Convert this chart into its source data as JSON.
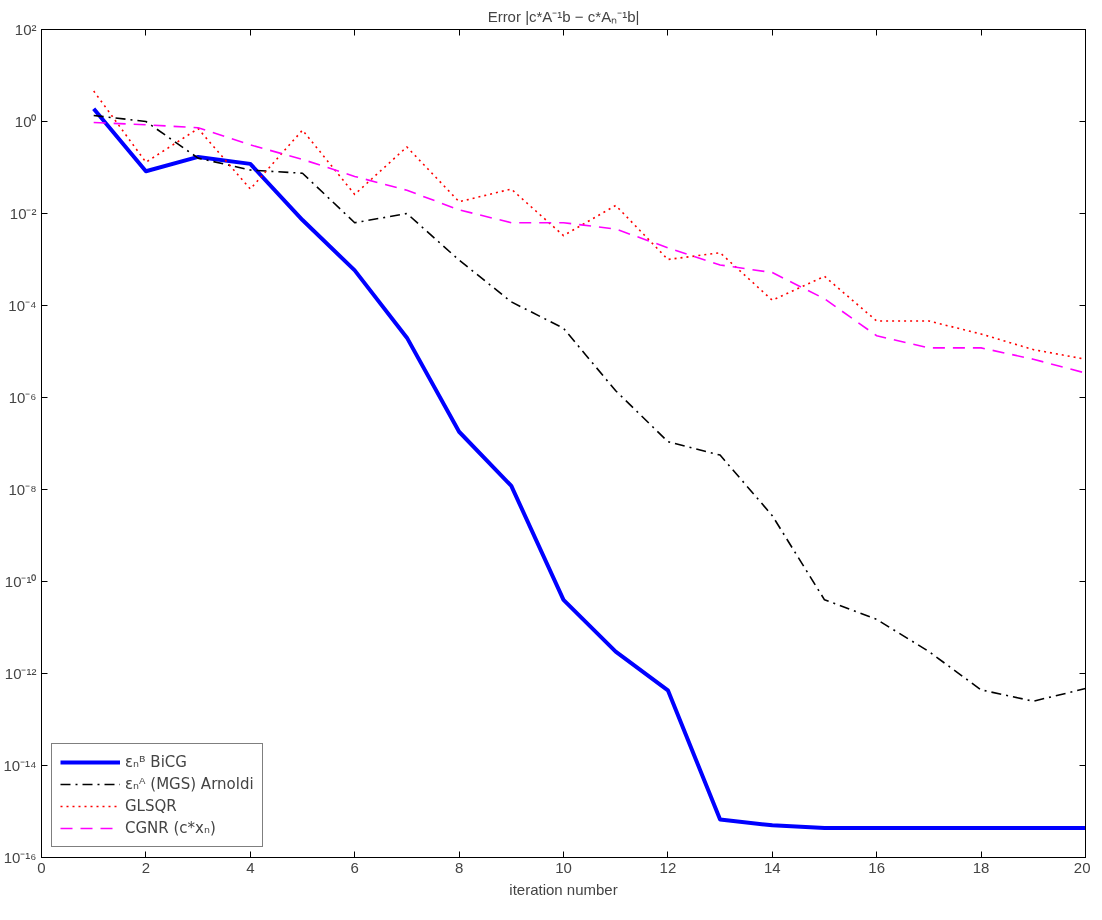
{
  "chart_data": {
    "type": "line",
    "title": "Error |c*A⁻¹b − c*Aₙ⁻¹b|",
    "xlabel": "iteration number",
    "x": [
      1,
      2,
      3,
      4,
      5,
      6,
      7,
      8,
      9,
      10,
      11,
      12,
      13,
      14,
      15,
      16,
      17,
      18,
      19,
      20
    ],
    "series": [
      {
        "name": "εₙᴮ BiCG",
        "color": "#0000ff",
        "line_style": "solid",
        "values": [
          1.9,
          0.083,
          0.17,
          0.12,
          0.0072,
          0.00058,
          2e-05,
          1.8e-07,
          1.2e-08,
          4e-11,
          3e-12,
          4.3e-13,
          6.7e-16,
          5e-16,
          4.4e-16,
          4.4e-16,
          4.4e-16,
          4.4e-16,
          4.4e-16,
          4.4e-16
        ]
      },
      {
        "name": "εₙᴬ (MGS) Arnoldi",
        "color": "#000000",
        "line_style": "dashdot",
        "values": [
          1.35,
          1.0,
          0.16,
          0.088,
          0.075,
          0.0063,
          0.01,
          0.00097,
          0.00012,
          3.2e-05,
          1.4e-06,
          1.1e-07,
          5.6e-08,
          2.7e-09,
          4e-11,
          1.5e-11,
          3e-12,
          4.4e-13,
          2.5e-13,
          4.7e-13
        ]
      },
      {
        "name": "GLSQR",
        "color": "#ff0000",
        "line_style": "dotted",
        "values": [
          4.6,
          0.13,
          0.7,
          0.034,
          0.65,
          0.026,
          0.28,
          0.018,
          0.034,
          0.0033,
          0.015,
          0.001,
          0.0014,
          0.00013,
          0.00043,
          4.6e-05,
          4.6e-05,
          2.4e-05,
          1.1e-05,
          6.8e-06
        ]
      },
      {
        "name": "CGNR (c*xₙ)",
        "color": "#ff00ff",
        "line_style": "dashed",
        "values": [
          0.95,
          0.85,
          0.73,
          0.31,
          0.15,
          0.064,
          0.032,
          0.012,
          0.0063,
          0.0063,
          0.0046,
          0.0018,
          0.00076,
          0.00052,
          0.00014,
          2.2e-05,
          1.2e-05,
          1.2e-05,
          6.8e-06,
          3.4e-06
        ]
      }
    ],
    "log": "y",
    "grid": false,
    "legend": "bottom left",
    "xlim": [
      0,
      20
    ],
    "xticks": [
      0,
      2,
      4,
      6,
      8,
      10,
      12,
      14,
      16,
      18,
      20
    ],
    "ylim": [
      1e-16,
      100
    ],
    "yticks": [
      {
        "value": 100,
        "label": "10²"
      },
      {
        "value": 1,
        "label": "10⁰"
      },
      {
        "value": 0.01,
        "label": "10⁻²"
      },
      {
        "value": 0.0001,
        "label": "10⁻⁴"
      },
      {
        "value": 1e-06,
        "label": "10⁻⁶"
      },
      {
        "value": 1e-08,
        "label": "10⁻⁸"
      },
      {
        "value": 1e-10,
        "label": "10⁻¹⁰"
      },
      {
        "value": 1e-12,
        "label": "10⁻¹²"
      },
      {
        "value": 1e-14,
        "label": "10⁻¹⁴"
      },
      {
        "value": 1e-16,
        "label": "10⁻¹⁶"
      }
    ]
  }
}
